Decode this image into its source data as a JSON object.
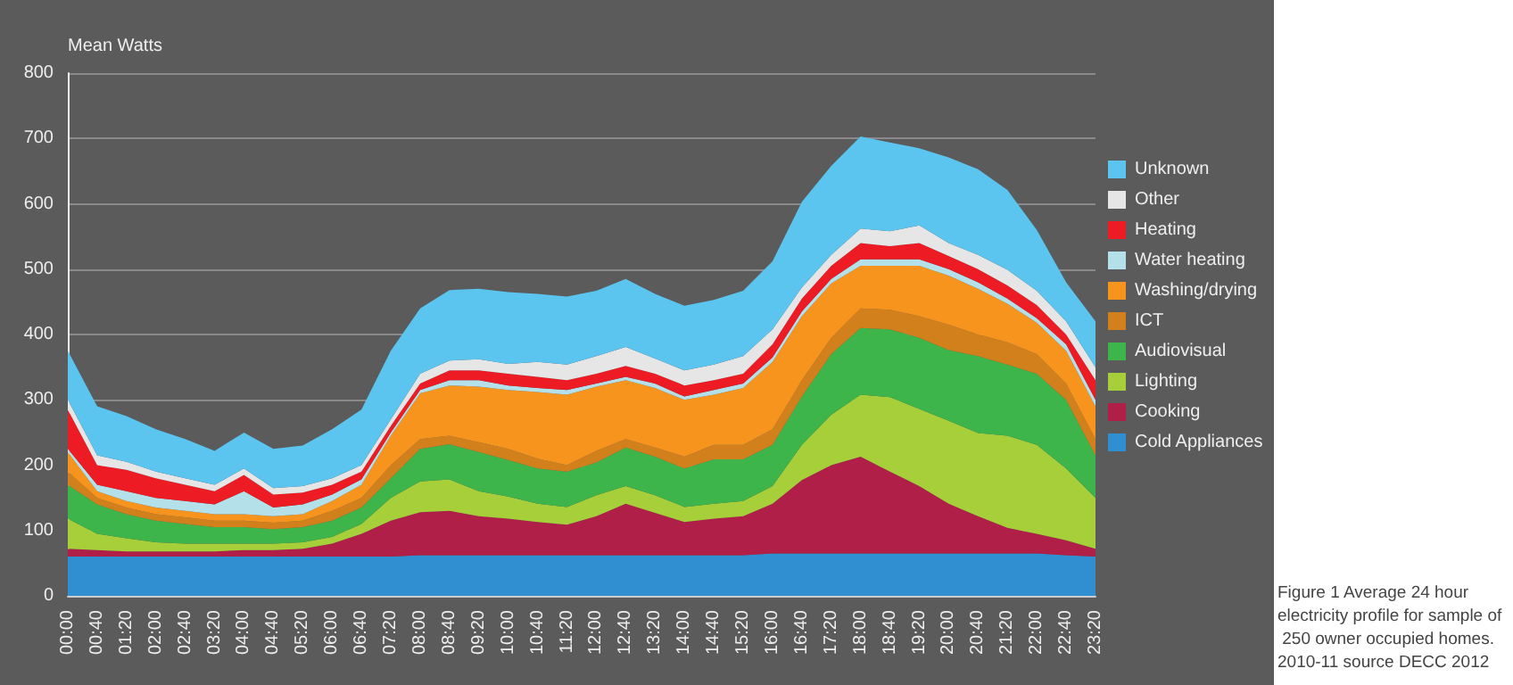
{
  "chart_data": {
    "type": "area",
    "stacked": true,
    "ylabel": "Mean Watts",
    "categories": [
      "00:00",
      "00:40",
      "01:20",
      "02:00",
      "02:40",
      "03:20",
      "04:00",
      "04:40",
      "05:20",
      "06:00",
      "06:40",
      "07:20",
      "08:00",
      "08:40",
      "09:20",
      "10:00",
      "10:40",
      "11:20",
      "12:00",
      "12:40",
      "13:20",
      "14:00",
      "14:40",
      "15:20",
      "16:00",
      "16:40",
      "17:20",
      "18:00",
      "18:40",
      "19:20",
      "20:00",
      "20:40",
      "21:20",
      "22:00",
      "22:40",
      "23:20"
    ],
    "series": [
      {
        "name": "Cold Appliances",
        "color": "#2f8fd1",
        "values": [
          60,
          60,
          60,
          60,
          60,
          60,
          60,
          60,
          60,
          60,
          60,
          60,
          62,
          62,
          62,
          62,
          62,
          62,
          62,
          62,
          62,
          62,
          62,
          62,
          65,
          65,
          65,
          65,
          65,
          65,
          65,
          65,
          65,
          65,
          62,
          60
        ]
      },
      {
        "name": "Cooking",
        "color": "#b01f48",
        "values": [
          12,
          10,
          8,
          8,
          8,
          8,
          10,
          10,
          12,
          20,
          35,
          55,
          66,
          68,
          60,
          56,
          51,
          47,
          60,
          79,
          65,
          51,
          56,
          60,
          76,
          112,
          135,
          148,
          125,
          103,
          76,
          57,
          39,
          30,
          23,
          12
        ]
      },
      {
        "name": "Lighting",
        "color": "#a6cf3a",
        "values": [
          46,
          25,
          20,
          14,
          12,
          12,
          10,
          10,
          10,
          10,
          15,
          35,
          47,
          48,
          38,
          34,
          28,
          27,
          32,
          27,
          27,
          23,
          23,
          23,
          27,
          54,
          77,
          95,
          114,
          118,
          127,
          127,
          141,
          136,
          110,
          78
        ]
      },
      {
        "name": "Audiovisual",
        "color": "#3db54a",
        "values": [
          52,
          45,
          37,
          33,
          30,
          25,
          25,
          22,
          23,
          25,
          25,
          30,
          50,
          54,
          60,
          56,
          54,
          54,
          50,
          59,
          59,
          59,
          68,
          64,
          63,
          74,
          93,
          102,
          104,
          109,
          108,
          118,
          109,
          109,
          105,
          65
        ]
      },
      {
        "name": "ICT",
        "color": "#d2801c",
        "values": [
          20,
          10,
          10,
          10,
          10,
          10,
          10,
          10,
          10,
          15,
          15,
          20,
          15,
          13,
          15,
          17,
          15,
          10,
          18,
          13,
          14,
          18,
          22,
          22,
          24,
          25,
          25,
          30,
          30,
          33,
          39,
          33,
          34,
          30,
          25,
          25
        ]
      },
      {
        "name": "Washing/drying",
        "color": "#f7941d",
        "values": [
          30,
          10,
          10,
          10,
          10,
          10,
          10,
          10,
          10,
          15,
          20,
          45,
          70,
          77,
          85,
          90,
          102,
          108,
          98,
          90,
          91,
          87,
          77,
          87,
          103,
          98,
          83,
          65,
          67,
          77,
          75,
          70,
          59,
          48,
          50,
          50
        ]
      },
      {
        "name": "Water heating",
        "color": "#b4e0ea",
        "values": [
          5,
          10,
          15,
          15,
          15,
          15,
          35,
          13,
          15,
          10,
          8,
          5,
          5,
          8,
          10,
          7,
          6,
          7,
          5,
          5,
          7,
          5,
          7,
          7,
          7,
          7,
          7,
          10,
          10,
          10,
          10,
          10,
          8,
          7,
          10,
          10
        ]
      },
      {
        "name": "Heating",
        "color": "#ed1c24",
        "values": [
          60,
          30,
          33,
          30,
          25,
          20,
          25,
          20,
          18,
          15,
          12,
          10,
          10,
          15,
          15,
          18,
          17,
          15,
          15,
          17,
          15,
          17,
          15,
          15,
          20,
          20,
          20,
          25,
          20,
          25,
          20,
          20,
          20,
          20,
          15,
          30
        ]
      },
      {
        "name": "Other",
        "color": "#e6e6e6",
        "values": [
          15,
          15,
          12,
          10,
          10,
          10,
          10,
          10,
          10,
          10,
          10,
          10,
          15,
          15,
          17,
          15,
          23,
          24,
          27,
          29,
          23,
          23,
          24,
          27,
          23,
          17,
          17,
          22,
          23,
          27,
          20,
          22,
          24,
          22,
          20,
          20
        ]
      },
      {
        "name": "Unknown",
        "color": "#5bc4ef",
        "values": [
          75,
          75,
          70,
          65,
          60,
          52,
          55,
          60,
          62,
          75,
          85,
          105,
          100,
          108,
          108,
          110,
          104,
          104,
          100,
          104,
          99,
          99,
          99,
          100,
          104,
          131,
          136,
          141,
          136,
          118,
          131,
          131,
          122,
          93,
          60,
          70
        ]
      }
    ],
    "ylim": [
      0,
      800
    ],
    "yticks": [
      0,
      100,
      200,
      300,
      400,
      500,
      600,
      700,
      800
    ],
    "grid": "y",
    "legend": "right",
    "annotations": [
      "Figure 1 Average 24 hour electricity profile for sample of 250 owner occupied homes. 2010-11 source DECC 2012"
    ]
  }
}
